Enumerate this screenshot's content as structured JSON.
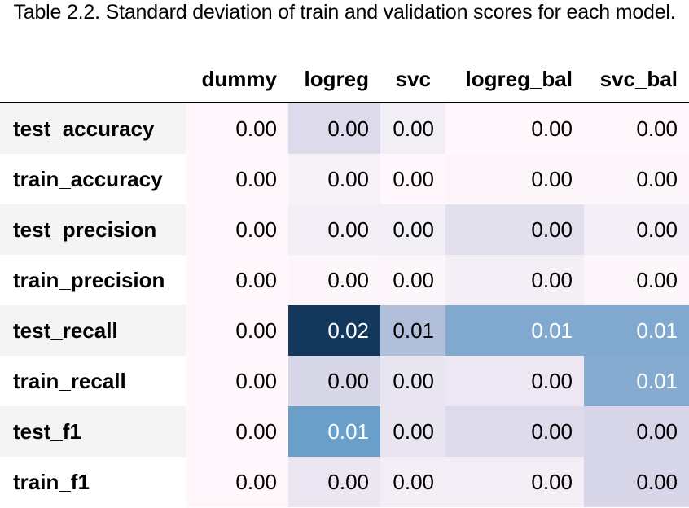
{
  "caption": "Table 2.2. Standard deviation of train and validation scores for each model.",
  "columns": [
    "dummy",
    "logreg",
    "svc",
    "logreg_bal",
    "svc_bal"
  ],
  "colors": {
    "text_dark": "#000000",
    "text_light": "#ffffff",
    "row_label_stripe": "#f4f4f4"
  },
  "rows": [
    {
      "label": "test_accuracy",
      "cells": [
        {
          "value": "0.00",
          "bg": "#fff7fb"
        },
        {
          "value": "0.00",
          "bg": "#dddbeb"
        },
        {
          "value": "0.00",
          "bg": "#f2eef6"
        },
        {
          "value": "0.00",
          "bg": "#fff7fb"
        },
        {
          "value": "0.00",
          "bg": "#fff7fb"
        }
      ]
    },
    {
      "label": "train_accuracy",
      "cells": [
        {
          "value": "0.00",
          "bg": "#fff7fb"
        },
        {
          "value": "0.00",
          "bg": "#f7f1f8"
        },
        {
          "value": "0.00",
          "bg": "#fff7fb"
        },
        {
          "value": "0.00",
          "bg": "#fcf5fa"
        },
        {
          "value": "0.00",
          "bg": "#fcf5fa"
        }
      ]
    },
    {
      "label": "test_precision",
      "cells": [
        {
          "value": "0.00",
          "bg": "#fff7fb"
        },
        {
          "value": "0.00",
          "bg": "#f4eff7"
        },
        {
          "value": "0.00",
          "bg": "#f2eef6"
        },
        {
          "value": "0.00",
          "bg": "#e3e0ee"
        },
        {
          "value": "0.00",
          "bg": "#f4eff7"
        }
      ]
    },
    {
      "label": "train_precision",
      "cells": [
        {
          "value": "0.00",
          "bg": "#fff7fb"
        },
        {
          "value": "0.00",
          "bg": "#fcf5fa"
        },
        {
          "value": "0.00",
          "bg": "#fcf5fa"
        },
        {
          "value": "0.00",
          "bg": "#f4eff7"
        },
        {
          "value": "0.00",
          "bg": "#fcf5fa"
        }
      ]
    },
    {
      "label": "test_recall",
      "cells": [
        {
          "value": "0.00",
          "bg": "#fff7fb",
          "light": false
        },
        {
          "value": "0.02",
          "bg": "#14375c",
          "light": true
        },
        {
          "value": "0.01",
          "bg": "#b0bed9",
          "light": false
        },
        {
          "value": "0.01",
          "bg": "#81a9cf",
          "light": true
        },
        {
          "value": "0.01",
          "bg": "#81a9cf",
          "light": true
        }
      ]
    },
    {
      "label": "train_recall",
      "cells": [
        {
          "value": "0.00",
          "bg": "#fff7fb",
          "light": false
        },
        {
          "value": "0.00",
          "bg": "#d8d7e8",
          "light": false
        },
        {
          "value": "0.00",
          "bg": "#eae6f1",
          "light": false
        },
        {
          "value": "0.00",
          "bg": "#ece7f2",
          "light": false
        },
        {
          "value": "0.01",
          "bg": "#86abd0",
          "light": true
        }
      ]
    },
    {
      "label": "test_f1",
      "cells": [
        {
          "value": "0.00",
          "bg": "#fff7fb",
          "light": false
        },
        {
          "value": "0.01",
          "bg": "#6a9fca",
          "light": true
        },
        {
          "value": "0.00",
          "bg": "#e8e4f0",
          "light": false
        },
        {
          "value": "0.00",
          "bg": "#dcdaeb",
          "light": false
        },
        {
          "value": "0.00",
          "bg": "#d7d6e8",
          "light": false
        }
      ]
    },
    {
      "label": "train_f1",
      "cells": [
        {
          "value": "0.00",
          "bg": "#fff7fb",
          "light": false
        },
        {
          "value": "0.00",
          "bg": "#ebe6f2",
          "light": false
        },
        {
          "value": "0.00",
          "bg": "#f3eef6",
          "light": false
        },
        {
          "value": "0.00",
          "bg": "#f3eef6",
          "light": false
        },
        {
          "value": "0.00",
          "bg": "#d7d6e8",
          "light": false
        }
      ]
    }
  ]
}
